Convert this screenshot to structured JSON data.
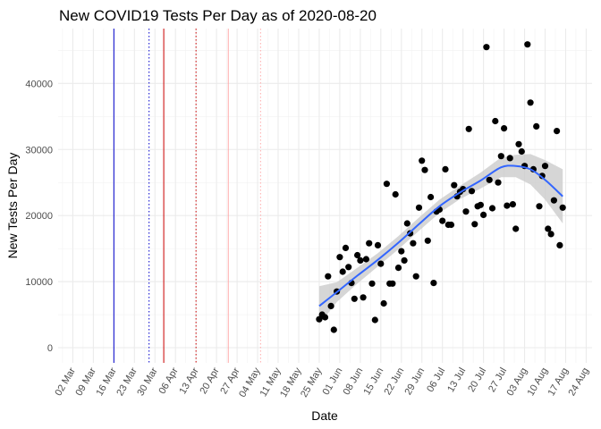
{
  "chart_data": {
    "type": "scatter",
    "title": "New COVID19 Tests Per Day as of 2020-08-20",
    "xlabel": "Date",
    "ylabel": "New Tests Per Day",
    "xlim": [
      "2020-02-26",
      "2020-08-26"
    ],
    "ylim": [
      -2300,
      48300
    ],
    "grid": true,
    "x_ticks": [
      "02 Mar",
      "09 Mar",
      "16 Mar",
      "23 Mar",
      "30 Mar",
      "06 Apr",
      "13 Apr",
      "20 Apr",
      "27 Apr",
      "04 May",
      "11 May",
      "18 May",
      "25 May",
      "01 Jun",
      "08 Jun",
      "15 Jun",
      "22 Jun",
      "29 Jun",
      "06 Jul",
      "13 Jul",
      "20 Jul",
      "27 Jul",
      "03 Aug",
      "10 Aug",
      "17 Aug",
      "24 Aug"
    ],
    "y_ticks": [
      "0",
      "10000",
      "20000",
      "30000",
      "40000"
    ],
    "vlines": [
      {
        "date": "2020-03-16",
        "color": "#0000cc",
        "style": "solid"
      },
      {
        "date": "2020-03-28",
        "color": "#0000cc",
        "style": "dotted"
      },
      {
        "date": "2020-04-02",
        "color": "#cc0000",
        "style": "solid"
      },
      {
        "date": "2020-04-13",
        "color": "#cc0000",
        "style": "dotted"
      },
      {
        "date": "2020-04-24",
        "color": "#ffaaaa",
        "style": "solid"
      },
      {
        "date": "2020-05-05",
        "color": "#ffaaaa",
        "style": "dotted"
      }
    ],
    "points": [
      {
        "x": "2020-05-25",
        "y": 4300
      },
      {
        "x": "2020-05-26",
        "y": 5000
      },
      {
        "x": "2020-05-27",
        "y": 4600
      },
      {
        "x": "2020-05-28",
        "y": 10800
      },
      {
        "x": "2020-05-29",
        "y": 6300
      },
      {
        "x": "2020-05-30",
        "y": 2700
      },
      {
        "x": "2020-05-31",
        "y": 8500
      },
      {
        "x": "2020-06-01",
        "y": 13700
      },
      {
        "x": "2020-06-02",
        "y": 11500
      },
      {
        "x": "2020-06-03",
        "y": 15100
      },
      {
        "x": "2020-06-04",
        "y": 12200
      },
      {
        "x": "2020-06-05",
        "y": 9800
      },
      {
        "x": "2020-06-06",
        "y": 7400
      },
      {
        "x": "2020-06-07",
        "y": 14000
      },
      {
        "x": "2020-06-08",
        "y": 13200
      },
      {
        "x": "2020-06-09",
        "y": 7600
      },
      {
        "x": "2020-06-10",
        "y": 13400
      },
      {
        "x": "2020-06-11",
        "y": 15800
      },
      {
        "x": "2020-06-12",
        "y": 9700
      },
      {
        "x": "2020-06-13",
        "y": 4200
      },
      {
        "x": "2020-06-14",
        "y": 15500
      },
      {
        "x": "2020-06-15",
        "y": 12700
      },
      {
        "x": "2020-06-16",
        "y": 6700
      },
      {
        "x": "2020-06-17",
        "y": 24800
      },
      {
        "x": "2020-06-18",
        "y": 9700
      },
      {
        "x": "2020-06-19",
        "y": 9700
      },
      {
        "x": "2020-06-20",
        "y": 23200
      },
      {
        "x": "2020-06-21",
        "y": 12100
      },
      {
        "x": "2020-06-22",
        "y": 14600
      },
      {
        "x": "2020-06-23",
        "y": 13200
      },
      {
        "x": "2020-06-24",
        "y": 18800
      },
      {
        "x": "2020-06-25",
        "y": 17300
      },
      {
        "x": "2020-06-26",
        "y": 15800
      },
      {
        "x": "2020-06-27",
        "y": 10800
      },
      {
        "x": "2020-06-28",
        "y": 21200
      },
      {
        "x": "2020-06-29",
        "y": 28300
      },
      {
        "x": "2020-06-30",
        "y": 26900
      },
      {
        "x": "2020-07-01",
        "y": 16200
      },
      {
        "x": "2020-07-02",
        "y": 22800
      },
      {
        "x": "2020-07-03",
        "y": 9800
      },
      {
        "x": "2020-07-04",
        "y": 20600
      },
      {
        "x": "2020-07-05",
        "y": 20900
      },
      {
        "x": "2020-07-06",
        "y": 19200
      },
      {
        "x": "2020-07-07",
        "y": 27000
      },
      {
        "x": "2020-07-08",
        "y": 18600
      },
      {
        "x": "2020-07-09",
        "y": 18600
      },
      {
        "x": "2020-07-10",
        "y": 24600
      },
      {
        "x": "2020-07-11",
        "y": 22900
      },
      {
        "x": "2020-07-12",
        "y": 23600
      },
      {
        "x": "2020-07-13",
        "y": 24000
      },
      {
        "x": "2020-07-14",
        "y": 20600
      },
      {
        "x": "2020-07-15",
        "y": 33100
      },
      {
        "x": "2020-07-16",
        "y": 23700
      },
      {
        "x": "2020-07-17",
        "y": 18700
      },
      {
        "x": "2020-07-18",
        "y": 21400
      },
      {
        "x": "2020-07-19",
        "y": 21600
      },
      {
        "x": "2020-07-20",
        "y": 20100
      },
      {
        "x": "2020-07-21",
        "y": 45500
      },
      {
        "x": "2020-07-22",
        "y": 25400
      },
      {
        "x": "2020-07-23",
        "y": 21100
      },
      {
        "x": "2020-07-24",
        "y": 34300
      },
      {
        "x": "2020-07-25",
        "y": 25000
      },
      {
        "x": "2020-07-26",
        "y": 29000
      },
      {
        "x": "2020-07-27",
        "y": 33200
      },
      {
        "x": "2020-07-28",
        "y": 21500
      },
      {
        "x": "2020-07-29",
        "y": 28700
      },
      {
        "x": "2020-07-30",
        "y": 21700
      },
      {
        "x": "2020-07-31",
        "y": 18000
      },
      {
        "x": "2020-08-01",
        "y": 30800
      },
      {
        "x": "2020-08-02",
        "y": 29700
      },
      {
        "x": "2020-08-03",
        "y": 27500
      },
      {
        "x": "2020-08-04",
        "y": 45900
      },
      {
        "x": "2020-08-05",
        "y": 37100
      },
      {
        "x": "2020-08-06",
        "y": 27000
      },
      {
        "x": "2020-08-07",
        "y": 33500
      },
      {
        "x": "2020-08-08",
        "y": 21400
      },
      {
        "x": "2020-08-09",
        "y": 26000
      },
      {
        "x": "2020-08-10",
        "y": 27500
      },
      {
        "x": "2020-08-11",
        "y": 18000
      },
      {
        "x": "2020-08-12",
        "y": 17200
      },
      {
        "x": "2020-08-13",
        "y": 22300
      },
      {
        "x": "2020-08-14",
        "y": 32800
      },
      {
        "x": "2020-08-15",
        "y": 15500
      },
      {
        "x": "2020-08-16",
        "y": 21200
      }
    ],
    "smooth": {
      "color": "#3366ff",
      "band_color": "#cccccc",
      "x": [
        "2020-05-25",
        "2020-05-31",
        "2020-06-07",
        "2020-06-14",
        "2020-06-21",
        "2020-06-28",
        "2020-07-05",
        "2020-07-12",
        "2020-07-19",
        "2020-07-26",
        "2020-07-31",
        "2020-08-05",
        "2020-08-10",
        "2020-08-16"
      ],
      "y": [
        6300,
        8400,
        10900,
        13300,
        15900,
        18700,
        21400,
        23500,
        25300,
        27300,
        27500,
        27000,
        25400,
        22900
      ],
      "lower": [
        3500,
        6900,
        9700,
        12300,
        14900,
        17700,
        20400,
        22500,
        24100,
        25800,
        25800,
        24700,
        22400,
        18800
      ],
      "upper": [
        9300,
        9900,
        12100,
        14300,
        16900,
        19700,
        22400,
        24500,
        26500,
        28800,
        29200,
        29300,
        28400,
        27000
      ]
    }
  }
}
